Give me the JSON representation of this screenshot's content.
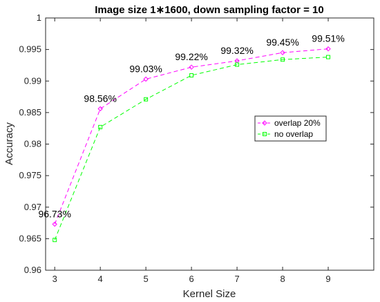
{
  "chart_data": {
    "type": "line",
    "title": "Image size 1∗1600, down sampling factor = 10",
    "xlabel": "Kernel Size",
    "ylabel": "Accuracy",
    "x": [
      3,
      4,
      5,
      6,
      7,
      8,
      9
    ],
    "xlim": [
      2.8,
      10
    ],
    "ylim": [
      0.96,
      1.0
    ],
    "xticks": [
      "3",
      "4",
      "5",
      "6",
      "7",
      "8",
      "9"
    ],
    "yticks": [
      "0.96",
      "0.965",
      "0.97",
      "0.975",
      "0.98",
      "0.985",
      "0.99",
      "0.995",
      "1"
    ],
    "ytick_values": [
      0.96,
      0.965,
      0.97,
      0.975,
      0.98,
      0.985,
      0.99,
      0.995,
      1.0
    ],
    "series": [
      {
        "name": "overlap 20%",
        "color": "#ff00ff",
        "marker": "diamond",
        "values": [
          0.9673,
          0.9856,
          0.9903,
          0.9922,
          0.9932,
          0.9945,
          0.9951
        ]
      },
      {
        "name": "no overlap",
        "color": "#00ff00",
        "marker": "square",
        "values": [
          0.9648,
          0.9827,
          0.9871,
          0.9909,
          0.9926,
          0.9934,
          0.9938
        ]
      }
    ],
    "annotations": [
      {
        "x": 3,
        "y": 0.9673,
        "text": "96.73%"
      },
      {
        "x": 4,
        "y": 0.9856,
        "text": "98.56%"
      },
      {
        "x": 5,
        "y": 0.9903,
        "text": "99.03%"
      },
      {
        "x": 6,
        "y": 0.9922,
        "text": "99.22%"
      },
      {
        "x": 7,
        "y": 0.9932,
        "text": "99.32%"
      },
      {
        "x": 8,
        "y": 0.9945,
        "text": "99.45%"
      },
      {
        "x": 9,
        "y": 0.9951,
        "text": "99.51%"
      }
    ],
    "grid": false,
    "legend_position": "right"
  }
}
